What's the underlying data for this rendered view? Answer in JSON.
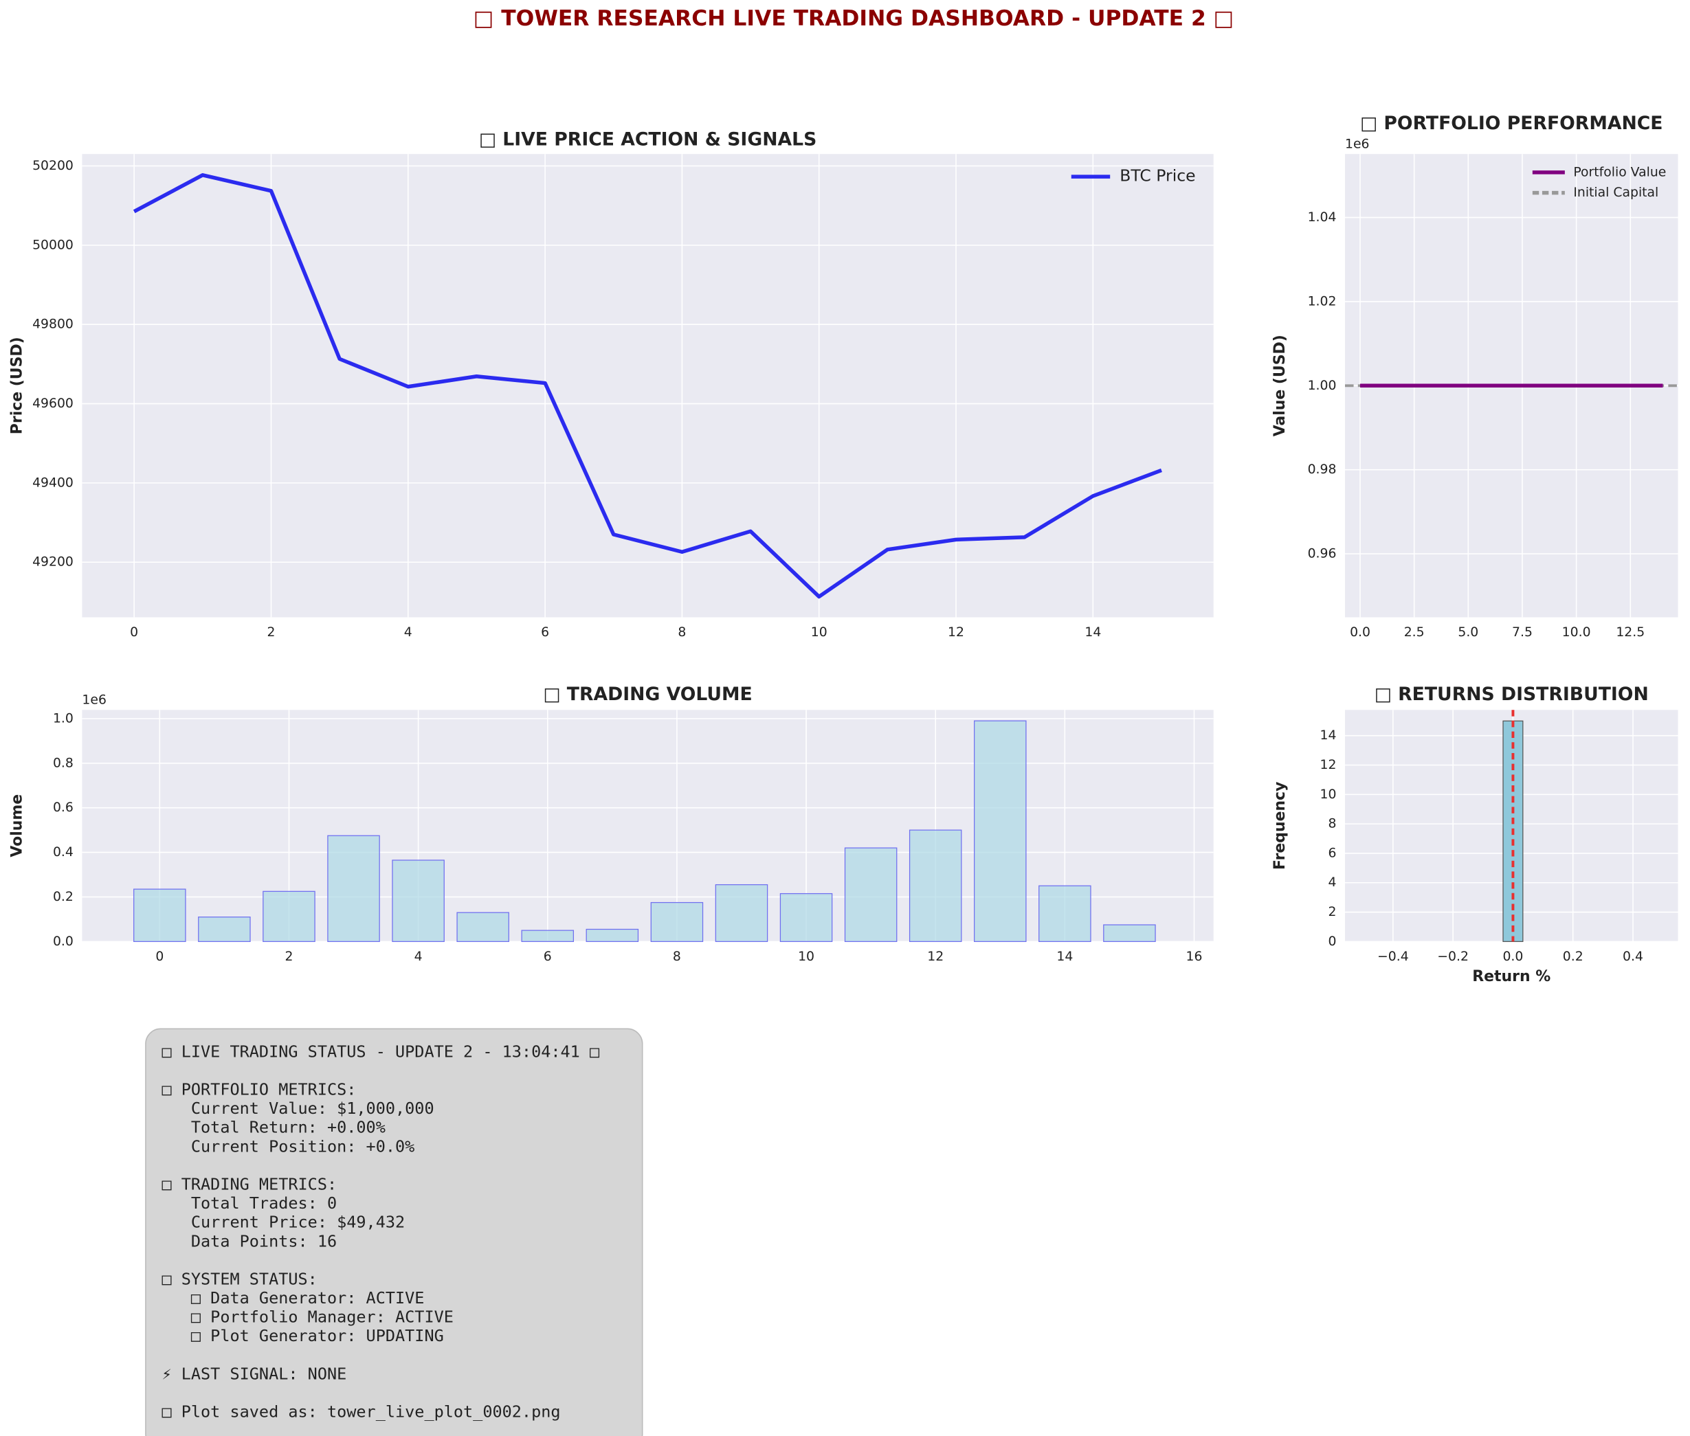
{
  "suptitle": "□ TOWER RESEARCH LIVE TRADING DASHBOARD - UPDATE 2 □",
  "chart_data": [
    {
      "type": "line",
      "title": "□ LIVE PRICE ACTION & SIGNALS",
      "ylabel": "Price (USD)",
      "x": [
        0,
        1,
        2,
        3,
        4,
        5,
        6,
        7,
        8,
        9,
        10,
        11,
        12,
        13,
        14,
        15
      ],
      "series": [
        {
          "name": "BTC Price",
          "color": "#2b2bef",
          "values": [
            50085,
            50177,
            50137,
            49713,
            49643,
            49669,
            49652,
            49270,
            49226,
            49278,
            49113,
            49232,
            49257,
            49263,
            49367,
            49432
          ]
        }
      ],
      "xlim": [
        -0.76,
        15.76
      ],
      "xticks": [
        0,
        2,
        4,
        6,
        8,
        10,
        12,
        14
      ],
      "ylim": [
        49061,
        50230
      ],
      "yticks": [
        49200,
        49400,
        49600,
        49800,
        50000,
        50200
      ],
      "grid": true,
      "legend": "upper right"
    },
    {
      "type": "line",
      "title": "□ PORTFOLIO PERFORMANCE",
      "ylabel": "Value (USD)",
      "y_offset_label": "1e6",
      "x": [
        0,
        1,
        2,
        3,
        4,
        5,
        6,
        7,
        8,
        9,
        10,
        11,
        12,
        13,
        14
      ],
      "series": [
        {
          "name": "Portfolio Value",
          "color": "#800080",
          "values": [
            1000000,
            1000000,
            1000000,
            1000000,
            1000000,
            1000000,
            1000000,
            1000000,
            1000000,
            1000000,
            1000000,
            1000000,
            1000000,
            1000000,
            1000000
          ]
        }
      ],
      "hlines": [
        {
          "name": "Initial Capital",
          "color": "#999999",
          "value": 1000000
        }
      ],
      "xlim": [
        -0.7,
        14.7
      ],
      "xticks": [
        {
          "value": 0,
          "label": "0.0"
        },
        2.5,
        {
          "value": 5,
          "label": "5.0"
        },
        7.5,
        {
          "value": 10,
          "label": "10.0"
        },
        12.5
      ],
      "ylim": [
        944900,
        1055100
      ],
      "yticks": [
        {
          "value": 960000,
          "label": "0.96"
        },
        {
          "value": 980000,
          "label": "0.98"
        },
        {
          "value": 1000000,
          "label": "1.00"
        },
        {
          "value": 1020000,
          "label": "1.02"
        },
        {
          "value": 1040000,
          "label": "1.04"
        }
      ],
      "grid": true,
      "legend": "upper right"
    },
    {
      "type": "bar",
      "title": "□ TRADING VOLUME",
      "ylabel": "Volume",
      "y_offset_label": "1e6",
      "x": [
        0,
        1,
        2,
        3,
        4,
        5,
        6,
        7,
        8,
        9,
        10,
        11,
        12,
        13,
        14,
        15
      ],
      "values": [
        235000,
        110000,
        225000,
        475000,
        365000,
        130000,
        50000,
        55000,
        175000,
        255000,
        215000,
        420000,
        500000,
        990000,
        250000,
        75000
      ],
      "color": "#add8e6",
      "edgecolor": "#6f6ff0",
      "xlim": [
        -1.2,
        16.3
      ],
      "xticks": [
        0,
        2,
        4,
        6,
        8,
        10,
        12,
        14,
        16
      ],
      "ylim": [
        0,
        1039000
      ],
      "yticks": [
        {
          "value": 0,
          "label": "0.0"
        },
        {
          "value": 200000,
          "label": "0.2"
        },
        {
          "value": 400000,
          "label": "0.4"
        },
        {
          "value": 600000,
          "label": "0.6"
        },
        {
          "value": 800000,
          "label": "0.8"
        },
        {
          "value": 1000000,
          "label": "1.0"
        }
      ],
      "grid": true
    },
    {
      "type": "histogram",
      "title": "□ RETURNS DISTRIBUTION",
      "xlabel": "Return %",
      "ylabel": "Frequency",
      "bins": [
        -0.033,
        0.033
      ],
      "counts": [
        15
      ],
      "color": "#8fc8db",
      "mean_line": 0,
      "mean_color": "#e83030",
      "xlim": [
        -0.56,
        0.55
      ],
      "xticks": [
        {
          "value": -0.4,
          "label": "−0.4"
        },
        {
          "value": -0.2,
          "label": "−0.2"
        },
        {
          "value": 0,
          "label": "0.0"
        },
        0.2,
        0.4
      ],
      "ylim": [
        0,
        15.75
      ],
      "yticks": [
        0,
        2,
        4,
        6,
        8,
        10,
        12,
        14
      ],
      "grid": true
    }
  ],
  "status_panel": {
    "blocks": [
      [
        "□ LIVE TRADING STATUS - UPDATE 2 - 13:04:41 □"
      ],
      [
        "□ PORTFOLIO METRICS:",
        "   Current Value: $1,000,000",
        "   Total Return: +0.00%",
        "   Current Position: +0.0%"
      ],
      [
        "□ TRADING METRICS:",
        "   Total Trades: 0",
        "   Current Price: $49,432",
        "   Data Points: 16"
      ],
      [
        "□ SYSTEM STATUS:",
        "   □ Data Generator: ACTIVE",
        "   □ Portfolio Manager: ACTIVE",
        "   □ Plot Generator: UPDATING"
      ],
      [
        "⚡ LAST SIGNAL: NONE"
      ],
      [
        "□ Plot saved as: tower_live_plot_0002.png"
      ]
    ]
  }
}
